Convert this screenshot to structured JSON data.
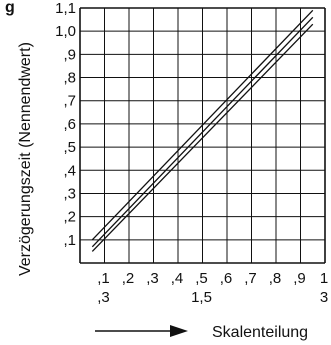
{
  "chart_data": {
    "type": "line",
    "title": "g",
    "ylabel": "Verzögerungszeit (Nennendwert)",
    "xlabel": "Skalenteilung",
    "xlim": [
      0.05,
      1.05
    ],
    "ylim": [
      0.0,
      1.1
    ],
    "grid": true,
    "y_ticks": [
      ",1",
      ",2",
      ",3",
      ",4",
      ",5",
      ",6",
      ",7",
      ",8",
      ",9",
      "1,0",
      "1,1"
    ],
    "x_ticks_row1": [
      ",1",
      ",2",
      ",3",
      ",4",
      ",5",
      ",6",
      ",7",
      ",8",
      ",9",
      "1"
    ],
    "x_ticks_row2": [
      ",3",
      "1,5",
      "3"
    ],
    "series": [
      {
        "x": [
          0.1,
          1.0
        ],
        "y": [
          0.07,
          1.06
        ]
      },
      {
        "x": [
          0.1,
          1.0
        ],
        "y": [
          0.05,
          1.03
        ]
      },
      {
        "x": [
          0.1,
          1.0
        ],
        "y": [
          0.1,
          1.09
        ]
      }
    ]
  }
}
